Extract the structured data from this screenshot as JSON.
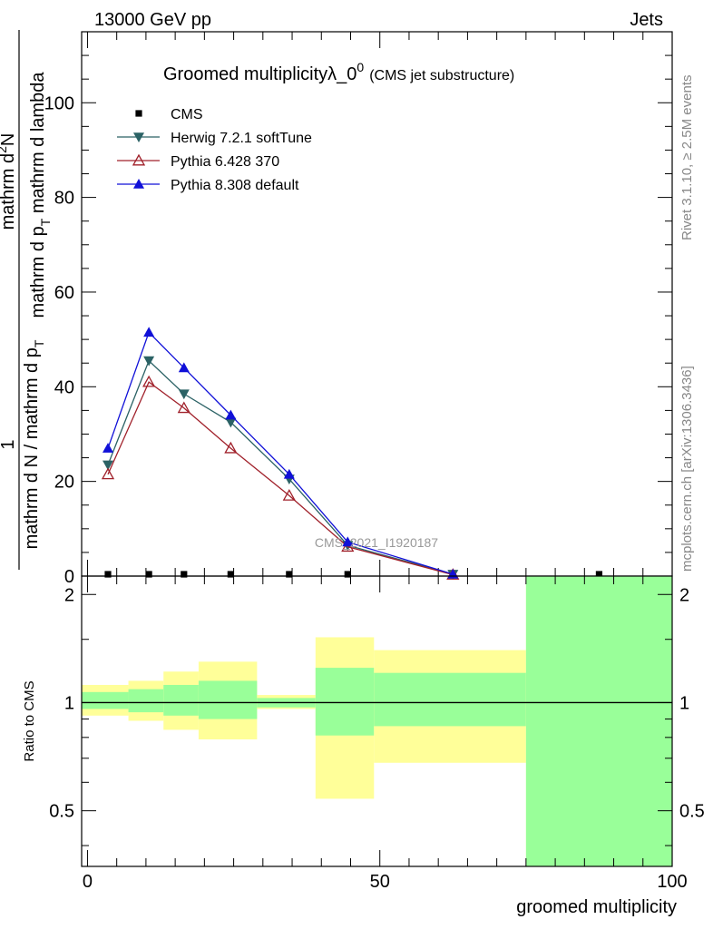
{
  "header": {
    "left": "13000 GeV pp",
    "right": "Jets"
  },
  "side_labels": {
    "rivet": "Rivet 3.1.10, ≥ 2.5M events",
    "mcplots": "mcplots.cern.ch [arXiv:1306.3436]"
  },
  "colors": {
    "cms": "#000000",
    "herwig": "#2b6265",
    "pythia6": "#a0202a",
    "pythia8": "#1010d8",
    "band_inner": "#99ff99",
    "band_outer": "#ffff99"
  },
  "chart_data": [
    {
      "type": "line",
      "title_main": "Groomed multiplicityλ_0",
      "title_sup": "0",
      "title_note": "(CMS jet substructure)",
      "watermark": "CMS_2021_I1920187",
      "ylabel_top_num": "mathrm d",
      "ylabel_top_sup": "2",
      "ylabel_top_rest": "N",
      "ylabel_top_den": "mathrm d p",
      "ylabel_top_sub": "T",
      "ylabel_top_den_rest": " mathrm d lambda",
      "ylabel_one": "1",
      "ylabel_bottom": "mathrm d N / mathrm d p",
      "ylabel_bottom_sub": "T",
      "xlim": [
        -1,
        100
      ],
      "ylim": [
        0,
        115
      ],
      "yticks": [
        0,
        20,
        40,
        60,
        80,
        100
      ],
      "ytick_labels": [
        "0",
        "20",
        "40",
        "60",
        "80",
        "100"
      ],
      "series": [
        {
          "name": "CMS",
          "marker": "square",
          "x": [
            3.5,
            10.5,
            16.5,
            24.5,
            34.5,
            44.5,
            62.5,
            87.5
          ],
          "y": [
            0,
            0,
            0,
            0,
            0,
            0,
            0,
            0
          ]
        },
        {
          "name": "Herwig 7.2.1 softTune",
          "marker": "triangle-down",
          "x": [
            3.5,
            10.5,
            16.5,
            24.5,
            34.5,
            44.5,
            62.5
          ],
          "y": [
            23.5,
            45.5,
            38.5,
            32.5,
            20.5,
            6.5,
            0.4
          ]
        },
        {
          "name": "Pythia 6.428 370",
          "marker": "triangle-open",
          "x": [
            3.5,
            10.5,
            16.5,
            24.5,
            34.5,
            44.5,
            62.5
          ],
          "y": [
            21.5,
            41.0,
            35.5,
            27.0,
            17.0,
            6.2,
            0.3
          ]
        },
        {
          "name": "Pythia 8.308 default",
          "marker": "triangle-up",
          "x": [
            3.5,
            10.5,
            16.5,
            24.5,
            34.5,
            44.5,
            62.5
          ],
          "y": [
            27.0,
            51.5,
            44.0,
            34.0,
            21.5,
            7.2,
            0.4
          ]
        }
      ]
    },
    {
      "type": "area",
      "ylabel": "Ratio to CMS",
      "xlabel": "groomed multiplicity",
      "xlim": [
        -1,
        100
      ],
      "ylim": [
        0.35,
        2.25
      ],
      "xticks": [
        0,
        50,
        100
      ],
      "xtick_labels": [
        "0",
        "50",
        "100"
      ],
      "yticks": [
        0.5,
        1,
        2
      ],
      "ytick_labels": [
        "0.5",
        "1",
        "2"
      ],
      "reference_line": 1,
      "bands": [
        {
          "x0": -1,
          "x1": 7,
          "inner": [
            0.96,
            1.07
          ],
          "outer": [
            0.92,
            1.12
          ]
        },
        {
          "x0": 7,
          "x1": 13,
          "inner": [
            0.94,
            1.09
          ],
          "outer": [
            0.89,
            1.15
          ]
        },
        {
          "x0": 13,
          "x1": 19,
          "inner": [
            0.92,
            1.12
          ],
          "outer": [
            0.84,
            1.22
          ]
        },
        {
          "x0": 19,
          "x1": 29,
          "inner": [
            0.9,
            1.15
          ],
          "outer": [
            0.79,
            1.3
          ]
        },
        {
          "x0": 29,
          "x1": 39,
          "inner": [
            0.97,
            1.03
          ],
          "outer": [
            0.96,
            1.05
          ]
        },
        {
          "x0": 39,
          "x1": 49,
          "inner": [
            0.81,
            1.25
          ],
          "outer": [
            0.54,
            1.52
          ]
        },
        {
          "x0": 49,
          "x1": 75,
          "inner": [
            0.86,
            1.21
          ],
          "outer": [
            0.68,
            1.4
          ]
        },
        {
          "x0": 75,
          "x1": 100,
          "inner": [
            0.35,
            2.25
          ],
          "outer": [
            0.35,
            2.25
          ]
        }
      ]
    }
  ]
}
